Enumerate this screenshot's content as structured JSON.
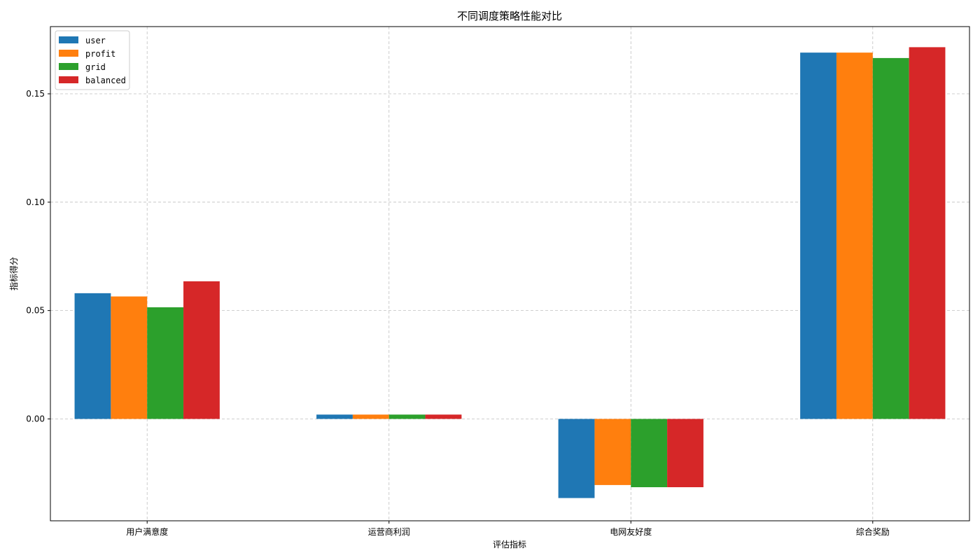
{
  "chart_data": {
    "type": "bar",
    "title": "不同调度策略性能对比",
    "xlabel": "评估指标",
    "ylabel": "指标得分",
    "categories": [
      "用户满意度",
      "运营商利润",
      "电网友好度",
      "综合奖励"
    ],
    "series": [
      {
        "name": "user",
        "color": "#1f77b4",
        "values": [
          0.058,
          0.002,
          -0.0365,
          0.169
        ]
      },
      {
        "name": "profit",
        "color": "#ff7f0e",
        "values": [
          0.0565,
          0.002,
          -0.0305,
          0.169
        ]
      },
      {
        "name": "grid",
        "color": "#2ca02c",
        "values": [
          0.0515,
          0.002,
          -0.0315,
          0.1665
        ]
      },
      {
        "name": "balanced",
        "color": "#d62728",
        "values": [
          0.0635,
          0.002,
          -0.0315,
          0.1715
        ]
      }
    ],
    "ylim": [
      -0.047,
      0.181
    ],
    "yticks": [
      "0.00",
      "0.05",
      "0.10",
      "0.15"
    ],
    "ytick_values": [
      0.0,
      0.05,
      0.1,
      0.15
    ],
    "grid": true,
    "legend_position": "top-left"
  }
}
